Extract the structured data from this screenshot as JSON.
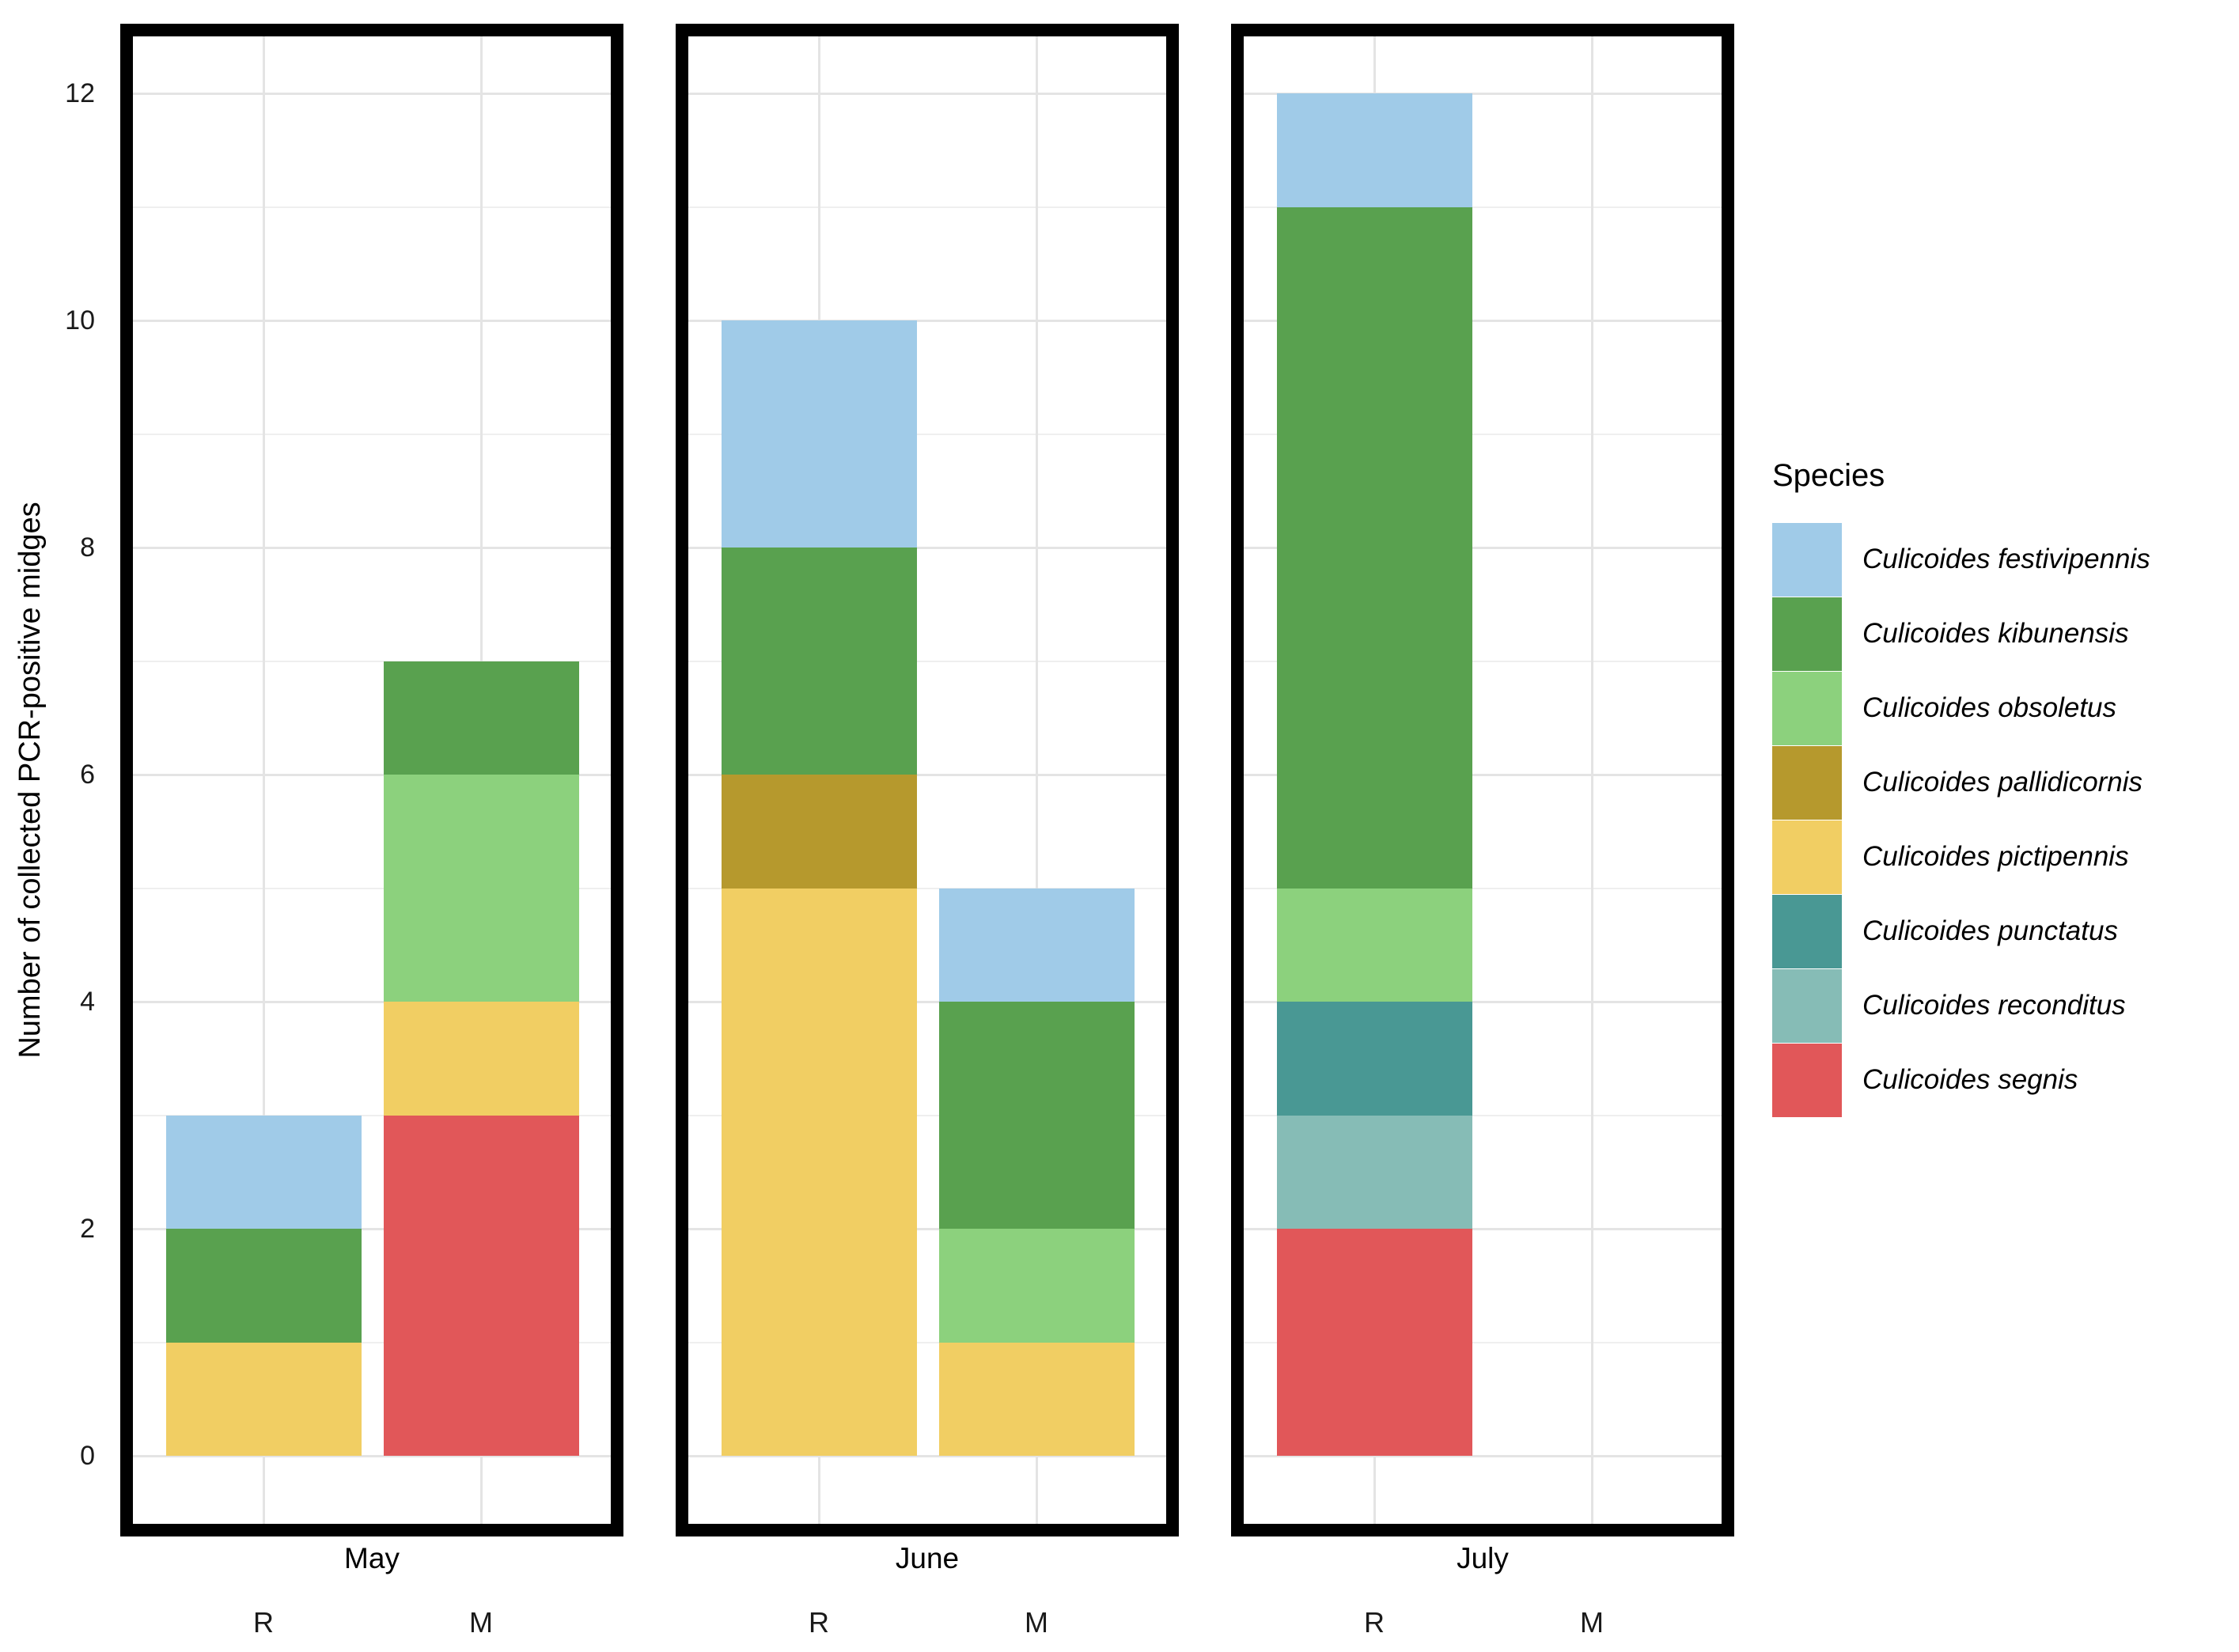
{
  "chart_data": {
    "type": "bar",
    "stacked": true,
    "title": "",
    "ylabel": "Number of collected PCR-positive midges",
    "xlabel": "",
    "ylim": [
      0,
      12
    ],
    "yticks": [
      0,
      2,
      4,
      6,
      8,
      10,
      12
    ],
    "grid": "horizontal major at even values, minor at odd values; vertical gridline at each category center",
    "legend_position": "right",
    "legend_title": "Species",
    "facets": [
      "May",
      "June",
      "July"
    ],
    "x_categories": [
      "R",
      "M"
    ],
    "species": [
      {
        "name": "Culicoides festivipennis",
        "color": "#A0CBE8"
      },
      {
        "name": "Culicoides kibunensis",
        "color": "#59A14F"
      },
      {
        "name": "Culicoides obsoletus",
        "color": "#8CD17D"
      },
      {
        "name": "Culicoides pallidicornis",
        "color": "#B6992D"
      },
      {
        "name": "Culicoides pictipennis",
        "color": "#F1CE63"
      },
      {
        "name": "Culicoides punctatus",
        "color": "#499894"
      },
      {
        "name": "Culicoides reconditus",
        "color": "#86BCB6"
      },
      {
        "name": "Culicoides segnis",
        "color": "#E15759"
      }
    ],
    "bars": [
      {
        "facet": "May",
        "category": "R",
        "total": 3,
        "segments_bottom_to_top": [
          {
            "species": "Culicoides pictipennis",
            "value": 1
          },
          {
            "species": "Culicoides kibunensis",
            "value": 1
          },
          {
            "species": "Culicoides festivipennis",
            "value": 1
          }
        ]
      },
      {
        "facet": "May",
        "category": "M",
        "total": 7,
        "segments_bottom_to_top": [
          {
            "species": "Culicoides segnis",
            "value": 3
          },
          {
            "species": "Culicoides pictipennis",
            "value": 1
          },
          {
            "species": "Culicoides obsoletus",
            "value": 2
          },
          {
            "species": "Culicoides kibunensis",
            "value": 1
          }
        ]
      },
      {
        "facet": "June",
        "category": "R",
        "total": 10,
        "segments_bottom_to_top": [
          {
            "species": "Culicoides pictipennis",
            "value": 5
          },
          {
            "species": "Culicoides pallidicornis",
            "value": 1
          },
          {
            "species": "Culicoides kibunensis",
            "value": 2
          },
          {
            "species": "Culicoides festivipennis",
            "value": 2
          }
        ]
      },
      {
        "facet": "June",
        "category": "M",
        "total": 5,
        "segments_bottom_to_top": [
          {
            "species": "Culicoides pictipennis",
            "value": 1
          },
          {
            "species": "Culicoides obsoletus",
            "value": 1
          },
          {
            "species": "Culicoides kibunensis",
            "value": 2
          },
          {
            "species": "Culicoides festivipennis",
            "value": 1
          }
        ]
      },
      {
        "facet": "July",
        "category": "R",
        "total": 12,
        "segments_bottom_to_top": [
          {
            "species": "Culicoides segnis",
            "value": 2
          },
          {
            "species": "Culicoides reconditus",
            "value": 1
          },
          {
            "species": "Culicoides punctatus",
            "value": 1
          },
          {
            "species": "Culicoides obsoletus",
            "value": 1
          },
          {
            "species": "Culicoides kibunensis",
            "value": 6
          },
          {
            "species": "Culicoides festivipennis",
            "value": 1
          }
        ]
      },
      {
        "facet": "July",
        "category": "M",
        "total": 0,
        "segments_bottom_to_top": []
      }
    ],
    "style_colors": {
      "panel_border": "#000000",
      "grid_major": "#E4E4E4",
      "grid_minor": "#EFEFEF",
      "text": "#000000",
      "background": "#FFFFFF"
    }
  }
}
